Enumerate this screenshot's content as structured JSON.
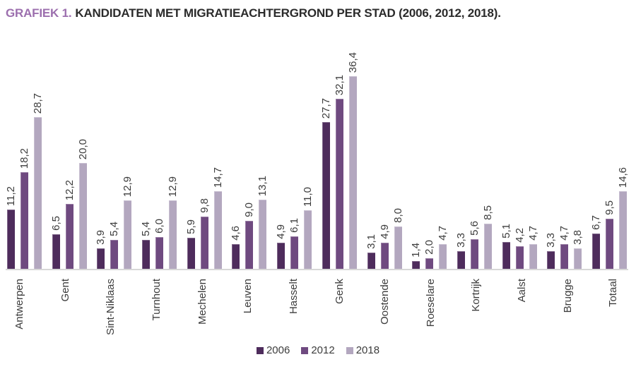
{
  "title": {
    "prefix": "GRAFIEK 1.",
    "text": "KANDIDATEN MET MIGRATIEACHTERGROND PER STAD (2006, 2012, 2018)."
  },
  "colors": {
    "title_accent": "#9c6fae",
    "title_text": "#2b2b2b",
    "axis_line": "#d8d8d8",
    "label_text": "#3c3c3c",
    "series_2006": "#4e2c5c",
    "series_2012": "#6f4a80",
    "series_2018": "#b3a7bf"
  },
  "legend": {
    "items": [
      {
        "label": "2006",
        "color": "#4e2c5c"
      },
      {
        "label": "2012",
        "color": "#6f4a80"
      },
      {
        "label": "2018",
        "color": "#b3a7bf"
      }
    ]
  },
  "chart_data": {
    "type": "bar",
    "title": "GRAFIEK 1. KANDIDATEN MET MIGRATIEACHTERGROND PER STAD (2006, 2012, 2018).",
    "categories": [
      "Antwerpen",
      "Gent",
      "Sint-Niklaas",
      "Turnhout",
      "Mechelen",
      "Leuven",
      "Hasselt",
      "Genk",
      "Oostende",
      "Roeselare",
      "Kortrijk",
      "Aalst",
      "Brugge",
      "Totaal"
    ],
    "series": [
      {
        "name": "2006",
        "color": "#4e2c5c",
        "values": [
          11.2,
          6.5,
          3.9,
          5.4,
          5.9,
          4.6,
          4.9,
          27.7,
          3.1,
          1.4,
          3.3,
          5.1,
          3.3,
          6.7
        ],
        "display_values": [
          "11,2",
          "6,5",
          "3,9",
          "5,4",
          "5,9",
          "4,6",
          "4,9",
          "27,7",
          "3,1",
          "1,4",
          "3,3",
          "5,1",
          "3,3",
          "6,7"
        ]
      },
      {
        "name": "2012",
        "color": "#6f4a80",
        "values": [
          18.2,
          12.2,
          5.4,
          6.0,
          9.8,
          9.0,
          6.1,
          32.1,
          4.9,
          2.0,
          5.6,
          4.2,
          4.7,
          9.5
        ],
        "display_values": [
          "18,2",
          "12,2",
          "5,4",
          "6,0",
          "9,8",
          "9,0",
          "6,1",
          "32,1",
          "4,9",
          "2,0",
          "5,6",
          "4,2",
          "4,7",
          "9,5"
        ]
      },
      {
        "name": "2018",
        "color": "#b3a7bf",
        "values": [
          28.7,
          20.0,
          12.9,
          12.9,
          14.7,
          13.1,
          11.0,
          36.4,
          8.0,
          4.7,
          8.5,
          4.7,
          3.8,
          14.6
        ],
        "display_values": [
          "28,7",
          "20,0",
          "12,9",
          "12,9",
          "14,7",
          "13,1",
          "11,0",
          "36,4",
          "8,0",
          "4,7",
          "8,5",
          "4,7",
          "3,8",
          "14,6"
        ]
      }
    ],
    "xlabel": "",
    "ylabel": "",
    "ylim": [
      0,
      38
    ],
    "grid": false,
    "axis_ticks_visible": false,
    "value_labels": "rotated-90-above-bars",
    "category_labels": "rotated-90-below-axis",
    "legend_position": "bottom-center",
    "decimal_separator": ","
  }
}
